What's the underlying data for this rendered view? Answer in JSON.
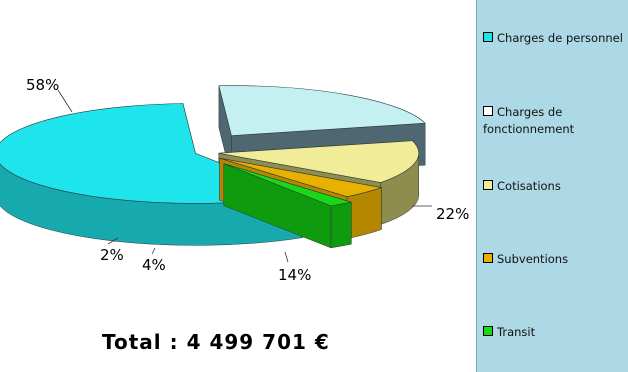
{
  "chart_data": {
    "type": "pie",
    "categories": [
      "Charges de personnel",
      "Charges de fonctionnement",
      "Cotisations",
      "Subventions",
      "Transit"
    ],
    "values": [
      58,
      22,
      14,
      4,
      2
    ],
    "data_labels": [
      "58%",
      "22%",
      "14%",
      "4%",
      "2%"
    ],
    "colors": [
      "#1ee4ec",
      "#c4f0f2",
      "#f0ec98",
      "#e8b000",
      "#18d818"
    ],
    "side_colors": [
      "#16a9ae",
      "#4f6770",
      "#8f8d4e",
      "#b38800",
      "#0e9c0e"
    ],
    "legend_position": "right",
    "exploded": true,
    "three_d": true
  },
  "total": "Total : 4 499 701 €",
  "legend": [
    {
      "label": "Charges de personnel",
      "color": "#1ee4ec"
    },
    {
      "label": "Charges de fonctionnement",
      "color": "#ffffff"
    },
    {
      "label": "Cotisations",
      "color": "#f0ec98"
    },
    {
      "label": "Subventions",
      "color": "#e8b000"
    },
    {
      "label": "Transit",
      "color": "#18d818"
    }
  ]
}
